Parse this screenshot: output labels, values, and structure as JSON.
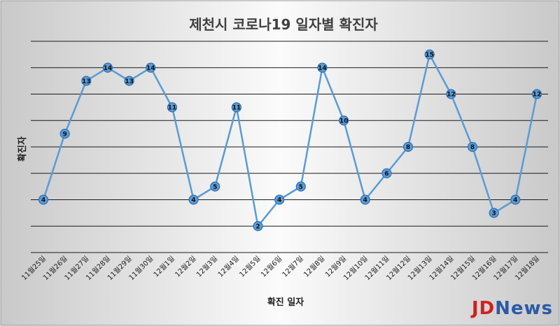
{
  "chart_data": {
    "type": "line",
    "title": "제천시 코로나19 일자별 확진자",
    "xlabel": "확진 일자",
    "ylabel": "확진자",
    "categories": [
      "11월25일",
      "11월26일",
      "11월27일",
      "11월28일",
      "11월29일",
      "11월30일",
      "12월1일",
      "12월2일",
      "12월3일",
      "12월4일",
      "12월5일",
      "12월6일",
      "12월7일",
      "12월8일",
      "12월9일",
      "12월10일",
      "12월11일",
      "12월12일",
      "12월13일",
      "12월14일",
      "12월15일",
      "12월16일",
      "12월17일",
      "12월18일"
    ],
    "series": [
      {
        "values": [
          4,
          9,
          13,
          14,
          13,
          14,
          11,
          4,
          5,
          11,
          2,
          4,
          5,
          14,
          10,
          4,
          6,
          8,
          15,
          12,
          8,
          3,
          4,
          12
        ]
      }
    ],
    "ylim": [
      0,
      16
    ],
    "grid": true,
    "show_data_labels": true,
    "line_color": "#5b9bd5",
    "marker_fill": "#5b9bd5",
    "marker_stroke": "#2e6fb5"
  },
  "branding": {
    "jd": "JD",
    "news": "News"
  }
}
